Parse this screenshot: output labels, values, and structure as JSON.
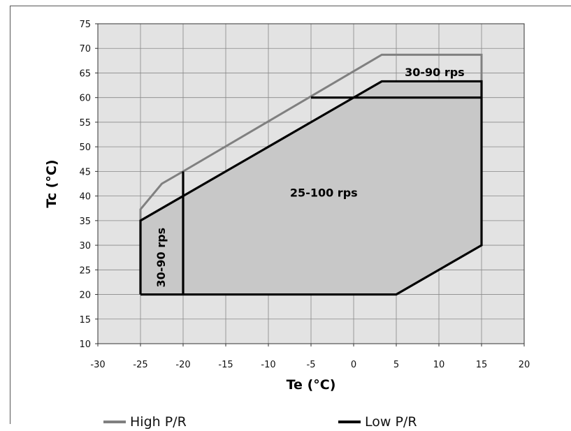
{
  "chart_data": {
    "type": "line",
    "title": "",
    "xlabel": "Te (°C)",
    "ylabel": "Tc (°C)",
    "xlim": [
      -30,
      20
    ],
    "ylim": [
      10,
      75
    ],
    "x_ticks": [
      -30,
      -25,
      -20,
      -15,
      -10,
      -5,
      0,
      5,
      10,
      15,
      20
    ],
    "y_ticks": [
      10,
      15,
      20,
      25,
      30,
      35,
      40,
      45,
      50,
      55,
      60,
      65,
      70,
      75
    ],
    "grid": true,
    "legend_position": "bottom",
    "series": [
      {
        "name": "High P/R",
        "color": "#808080",
        "x": [
          -25,
          -25,
          -22.5,
          -20,
          3.3,
          15,
          15
        ],
        "y": [
          35,
          37.3,
          42.5,
          45,
          68.7,
          68.7,
          63.3
        ]
      },
      {
        "name": "Low P/R",
        "color": "#000000",
        "x": [
          -25,
          -25,
          -20,
          3.3,
          15,
          15,
          5,
          -25
        ],
        "y": [
          20,
          35,
          40,
          63.3,
          63.3,
          30,
          20,
          20
        ]
      }
    ],
    "boundaries": [
      {
        "x": [
          -20,
          -20
        ],
        "y": [
          20,
          45
        ]
      },
      {
        "x": [
          -5,
          15
        ],
        "y": [
          60,
          60
        ]
      }
    ],
    "annotations": [
      {
        "text": "30-90 rps",
        "x": 9.5,
        "y": 65,
        "rotation": 0
      },
      {
        "text": "25-100 rps",
        "x": -3.5,
        "y": 40.5,
        "rotation": 0
      },
      {
        "text": "30-90 rps",
        "x": -22.5,
        "y": 27.5,
        "rotation": -90
      }
    ],
    "colors": {
      "plot_background": "#e3e3e3",
      "region_fill": "#c8c8c8",
      "gridline": "#888888"
    }
  }
}
